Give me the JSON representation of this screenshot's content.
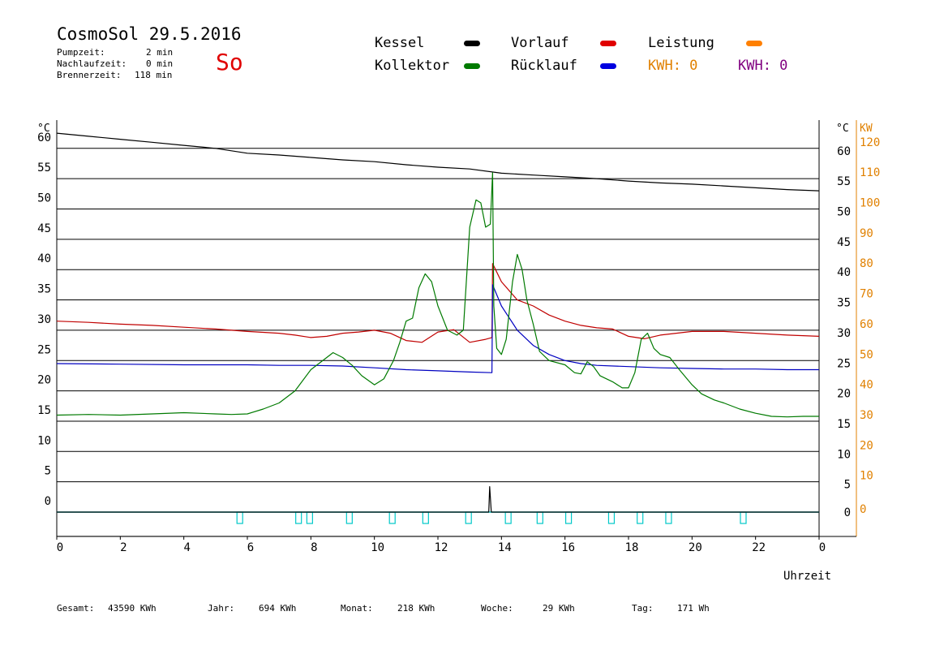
{
  "header": {
    "title": "CosmoSol 29.5.2016",
    "pump_label": "Pumpzeit:",
    "pump_value": "2 min",
    "nachlauf_label": "Nachlaufzeit:",
    "nachlauf_value": "0 min",
    "brenner_label": "Brennerzeit:",
    "brenner_value": "118 min",
    "day": "So"
  },
  "legend": {
    "kessel": "Kessel",
    "kollektor": "Kollektor",
    "vorlauf": "Vorlauf",
    "ruecklauf": "Rücklauf",
    "leistung": "Leistung",
    "kwh1": "KWH: 0",
    "kwh2": "KWH: 0"
  },
  "colors": {
    "kessel": "#000000",
    "kollektor": "#007a00",
    "vorlauf": "#c00000",
    "ruecklauf": "#0000c0",
    "leistung": "#ff8000",
    "kwh1": "#e08000",
    "kwh2": "#800080",
    "pump": "#00c8c8"
  },
  "footer": {
    "gesamt_label": "Gesamt:",
    "gesamt_value": "43590 KWh",
    "jahr_label": "Jahr:",
    "jahr_value": "694 KWh",
    "monat_label": "Monat:",
    "monat_value": "218 KWh",
    "woche_label": "Woche:",
    "woche_value": "29 KWh",
    "tag_label": "Tag:",
    "tag_value": "171 Wh"
  },
  "chart_data": {
    "type": "line",
    "xlabel": "Uhrzeit",
    "y_unit_left": "°C",
    "y_unit_right": "°C",
    "y2_unit": "KW",
    "x_ticks": [
      "0",
      "2",
      "4",
      "6",
      "8",
      "10",
      "12",
      "14",
      "16",
      "18",
      "20",
      "22",
      "0"
    ],
    "y_ticks": [
      0,
      5,
      10,
      15,
      20,
      25,
      30,
      35,
      40,
      45,
      50,
      55,
      60
    ],
    "y2_ticks": [
      0,
      10,
      20,
      30,
      40,
      50,
      60,
      70,
      80,
      90,
      100,
      110,
      120
    ],
    "xlim": [
      0,
      24
    ],
    "ylim": [
      -1,
      63
    ],
    "grid": true,
    "series": [
      {
        "key": "kessel",
        "points": [
          [
            0,
            62.5
          ],
          [
            1,
            62
          ],
          [
            2,
            61.5
          ],
          [
            3,
            61
          ],
          [
            4,
            60.5
          ],
          [
            5,
            60
          ],
          [
            6,
            59.2
          ],
          [
            7,
            58.9
          ],
          [
            8,
            58.5
          ],
          [
            9,
            58.1
          ],
          [
            10,
            57.8
          ],
          [
            11,
            57.3
          ],
          [
            12,
            56.9
          ],
          [
            13,
            56.6
          ],
          [
            14,
            55.9
          ],
          [
            15,
            55.6
          ],
          [
            16,
            55.3
          ],
          [
            17,
            55
          ],
          [
            18,
            54.6
          ],
          [
            19,
            54.3
          ],
          [
            20,
            54.1
          ],
          [
            21,
            53.8
          ],
          [
            22,
            53.5
          ],
          [
            23,
            53.2
          ],
          [
            24,
            53
          ]
        ]
      },
      {
        "key": "vorlauf",
        "points": [
          [
            0,
            31.5
          ],
          [
            1,
            31.3
          ],
          [
            2,
            31
          ],
          [
            3,
            30.8
          ],
          [
            4,
            30.5
          ],
          [
            5,
            30.2
          ],
          [
            6,
            29.8
          ],
          [
            7,
            29.5
          ],
          [
            7.5,
            29.2
          ],
          [
            8,
            28.8
          ],
          [
            8.5,
            29
          ],
          [
            9,
            29.5
          ],
          [
            9.5,
            29.7
          ],
          [
            10,
            30
          ],
          [
            10.5,
            29.5
          ],
          [
            11,
            28.3
          ],
          [
            11.5,
            28
          ],
          [
            12,
            29.7
          ],
          [
            12.5,
            30.1
          ],
          [
            13,
            28
          ],
          [
            13.5,
            28.5
          ],
          [
            13.7,
            28.8
          ],
          [
            13.72,
            41
          ],
          [
            14,
            38
          ],
          [
            14.5,
            35
          ],
          [
            15,
            34
          ],
          [
            15.5,
            32.5
          ],
          [
            16,
            31.5
          ],
          [
            16.5,
            30.8
          ],
          [
            17,
            30.4
          ],
          [
            17.5,
            30.2
          ],
          [
            18,
            29
          ],
          [
            18.5,
            28.6
          ],
          [
            19,
            29.2
          ],
          [
            19.5,
            29.5
          ],
          [
            20,
            29.8
          ],
          [
            21,
            29.8
          ],
          [
            22,
            29.5
          ],
          [
            23,
            29.2
          ],
          [
            24,
            29
          ]
        ]
      },
      {
        "key": "ruecklauf",
        "points": [
          [
            0,
            24.5
          ],
          [
            2,
            24.4
          ],
          [
            4,
            24.3
          ],
          [
            6,
            24.3
          ],
          [
            7,
            24.2
          ],
          [
            8,
            24.2
          ],
          [
            9,
            24.1
          ],
          [
            10,
            23.8
          ],
          [
            11,
            23.5
          ],
          [
            12,
            23.3
          ],
          [
            13,
            23.1
          ],
          [
            13.7,
            23
          ],
          [
            13.72,
            37.5
          ],
          [
            14,
            34
          ],
          [
            14.5,
            30
          ],
          [
            15,
            27.5
          ],
          [
            15.5,
            26
          ],
          [
            16,
            25
          ],
          [
            16.5,
            24.5
          ],
          [
            17,
            24.2
          ],
          [
            18,
            24
          ],
          [
            19,
            23.8
          ],
          [
            20,
            23.7
          ],
          [
            21,
            23.6
          ],
          [
            22,
            23.6
          ],
          [
            23,
            23.5
          ],
          [
            24,
            23.5
          ]
        ]
      },
      {
        "key": "kollektor",
        "points": [
          [
            0,
            16
          ],
          [
            1,
            16.1
          ],
          [
            2,
            16
          ],
          [
            3,
            16.2
          ],
          [
            4,
            16.4
          ],
          [
            5,
            16.2
          ],
          [
            5.5,
            16.1
          ],
          [
            6,
            16.2
          ],
          [
            6.5,
            17
          ],
          [
            7,
            18
          ],
          [
            7.5,
            20
          ],
          [
            8,
            23.5
          ],
          [
            8.5,
            25.5
          ],
          [
            8.7,
            26.3
          ],
          [
            9,
            25.5
          ],
          [
            9.3,
            24.2
          ],
          [
            9.6,
            22.5
          ],
          [
            10,
            21
          ],
          [
            10.3,
            22
          ],
          [
            10.6,
            25
          ],
          [
            10.8,
            28
          ],
          [
            11,
            31.5
          ],
          [
            11.2,
            32
          ],
          [
            11.4,
            37
          ],
          [
            11.6,
            39.3
          ],
          [
            11.8,
            38
          ],
          [
            12,
            34
          ],
          [
            12.3,
            30
          ],
          [
            12.6,
            29.2
          ],
          [
            12.8,
            30
          ],
          [
            13,
            47
          ],
          [
            13.2,
            51.5
          ],
          [
            13.35,
            51
          ],
          [
            13.5,
            47
          ],
          [
            13.65,
            47.5
          ],
          [
            13.7,
            53.5
          ],
          [
            13.72,
            56
          ],
          [
            13.76,
            34
          ],
          [
            13.85,
            27
          ],
          [
            14,
            26
          ],
          [
            14.15,
            28.5
          ],
          [
            14.35,
            38
          ],
          [
            14.5,
            42.5
          ],
          [
            14.65,
            40
          ],
          [
            14.8,
            35
          ],
          [
            15,
            31
          ],
          [
            15.2,
            26.5
          ],
          [
            15.5,
            25
          ],
          [
            16,
            24.3
          ],
          [
            16.3,
            23
          ],
          [
            16.5,
            22.8
          ],
          [
            16.7,
            24.8
          ],
          [
            16.9,
            24
          ],
          [
            17.1,
            22.5
          ],
          [
            17.5,
            21.5
          ],
          [
            17.8,
            20.5
          ],
          [
            18,
            20.5
          ],
          [
            18.2,
            23
          ],
          [
            18.4,
            28.5
          ],
          [
            18.6,
            29.5
          ],
          [
            18.8,
            27
          ],
          [
            19,
            26
          ],
          [
            19.3,
            25.5
          ],
          [
            19.6,
            23.5
          ],
          [
            20,
            21
          ],
          [
            20.3,
            19.5
          ],
          [
            20.7,
            18.5
          ],
          [
            21,
            18
          ],
          [
            21.5,
            17
          ],
          [
            22,
            16.3
          ],
          [
            22.5,
            15.8
          ],
          [
            23,
            15.7
          ],
          [
            23.5,
            15.8
          ],
          [
            24,
            15.8
          ]
        ]
      },
      {
        "key": "leistung",
        "points": [
          [
            0,
            0
          ],
          [
            13.6,
            0
          ],
          [
            13.63,
            4.2
          ],
          [
            13.68,
            0
          ],
          [
            24,
            0
          ]
        ]
      }
    ],
    "pump_pulses": [
      5.75,
      7.6,
      7.95,
      9.2,
      10.55,
      11.6,
      12.95,
      14.2,
      15.2,
      16.1,
      17.45,
      18.35,
      19.25,
      21.6
    ]
  }
}
